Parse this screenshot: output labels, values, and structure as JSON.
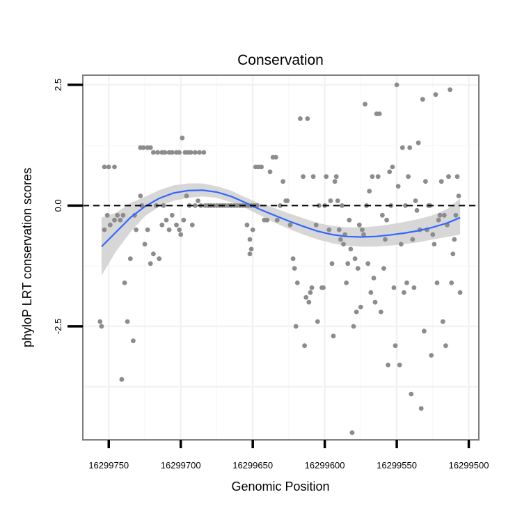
{
  "chart_data": {
    "type": "scatter",
    "title": "Conservation",
    "xlabel": "Genomic Position",
    "ylabel": "phyloP LRT conservation scores",
    "x_reversed": true,
    "xlim": [
      16299768,
      16299493
    ],
    "ylim": [
      -4.85,
      2.7
    ],
    "x_ticks": [
      {
        "value": 16299750,
        "label": "16299750"
      },
      {
        "value": 16299700,
        "label": "16299700"
      },
      {
        "value": 16299650,
        "label": "16299650"
      },
      {
        "value": 16299600,
        "label": "16299600"
      },
      {
        "value": 16299550,
        "label": "16299550"
      },
      {
        "value": 16299500,
        "label": "16299500"
      }
    ],
    "y_ticks": [
      {
        "value": 2.5,
        "label": "2.5"
      },
      {
        "value": 0.0,
        "label": "0.0"
      },
      {
        "value": -2.5,
        "label": "-2.5"
      }
    ],
    "reference_line": {
      "y": 0,
      "style": "dashed",
      "color": "#000000"
    },
    "colors": {
      "points": "#8c8c8c",
      "smooth": "#3366ff",
      "ribbon": "#d0d0d0",
      "panel_border": "#7f7f7f",
      "grid": "#f2f2f2"
    },
    "points": [
      [
        16299756,
        -2.4
      ],
      [
        16299755,
        -2.5
      ],
      [
        16299753,
        0.8
      ],
      [
        16299750,
        0.8
      ],
      [
        16299746,
        0.8
      ],
      [
        16299753,
        -0.5
      ],
      [
        16299751,
        -0.2
      ],
      [
        16299749,
        -0.4
      ],
      [
        16299746,
        -0.3
      ],
      [
        16299744,
        -0.2
      ],
      [
        16299742,
        -0.3
      ],
      [
        16299740,
        -0.2
      ],
      [
        16299741,
        -3.6
      ],
      [
        16299739,
        -1.6
      ],
      [
        16299737,
        -2.4
      ],
      [
        16299735,
        -1.1
      ],
      [
        16299733,
        -2.8
      ],
      [
        16299732,
        -0.2
      ],
      [
        16299731,
        -0.5
      ],
      [
        16299728,
        0.2
      ],
      [
        16299727,
        0.0
      ],
      [
        16299725,
        -0.8
      ],
      [
        16299723,
        -0.5
      ],
      [
        16299721,
        -1.2
      ],
      [
        16299719,
        -1.0
      ],
      [
        16299717,
        0.0
      ],
      [
        16299715,
        -1.1
      ],
      [
        16299713,
        -0.4
      ],
      [
        16299712,
        0.0
      ],
      [
        16299710,
        -0.3
      ],
      [
        16299708,
        -0.5
      ],
      [
        16299706,
        -0.2
      ],
      [
        16299703,
        -0.4
      ],
      [
        16299701,
        -0.5
      ],
      [
        16299700,
        -0.6
      ],
      [
        16299698,
        -0.3
      ],
      [
        16299696,
        0.2
      ],
      [
        16299694,
        0.0
      ],
      [
        16299692,
        -0.4
      ],
      [
        16299690,
        0.0
      ],
      [
        16299688,
        0.1
      ],
      [
        16299728,
        1.2
      ],
      [
        16299726,
        1.2
      ],
      [
        16299723,
        1.2
      ],
      [
        16299721,
        1.2
      ],
      [
        16299719,
        1.1
      ],
      [
        16299716,
        1.1
      ],
      [
        16299713,
        1.1
      ],
      [
        16299711,
        1.1
      ],
      [
        16299708,
        1.1
      ],
      [
        16299706,
        1.1
      ],
      [
        16299703,
        1.1
      ],
      [
        16299701,
        1.1
      ],
      [
        16299699,
        1.4
      ],
      [
        16299697,
        1.1
      ],
      [
        16299695,
        1.1
      ],
      [
        16299693,
        1.1
      ],
      [
        16299690,
        1.1
      ],
      [
        16299687,
        1.1
      ],
      [
        16299684,
        1.1
      ],
      [
        16299686,
        0.0
      ],
      [
        16299683,
        0.0
      ],
      [
        16299681,
        0.0
      ],
      [
        16299679,
        0.0
      ],
      [
        16299677,
        0.0
      ],
      [
        16299675,
        0.0
      ],
      [
        16299673,
        0.0
      ],
      [
        16299671,
        0.0
      ],
      [
        16299669,
        0.0
      ],
      [
        16299667,
        0.0
      ],
      [
        16299665,
        0.0
      ],
      [
        16299663,
        0.0
      ],
      [
        16299661,
        0.0
      ],
      [
        16299659,
        0.0
      ],
      [
        16299657,
        0.0
      ],
      [
        16299655,
        0.0
      ],
      [
        16299653,
        0.0
      ],
      [
        16299651,
        0.0
      ],
      [
        16299649,
        0.0
      ],
      [
        16299647,
        0.0
      ],
      [
        16299654,
        -0.4
      ],
      [
        16299652,
        -0.7
      ],
      [
        16299651,
        -0.9
      ],
      [
        16299652,
        -1.0
      ],
      [
        16299650,
        -0.5
      ],
      [
        16299648,
        0.8
      ],
      [
        16299646,
        0.8
      ],
      [
        16299644,
        0.8
      ],
      [
        16299642,
        -0.3
      ],
      [
        16299640,
        -0.3
      ],
      [
        16299638,
        0.7
      ],
      [
        16299636,
        1.0
      ],
      [
        16299634,
        1.0
      ],
      [
        16299633,
        -0.3
      ],
      [
        16299631,
        0.0
      ],
      [
        16299629,
        0.5
      ],
      [
        16299627,
        0.1
      ],
      [
        16299626,
        0.1
      ],
      [
        16299624,
        -0.4
      ],
      [
        16299622,
        -1.1
      ],
      [
        16299621,
        -1.3
      ],
      [
        16299620,
        -2.5
      ],
      [
        16299619,
        -1.6
      ],
      [
        16299617,
        1.8
      ],
      [
        16299615,
        0.6
      ],
      [
        16299614,
        -2.9
      ],
      [
        16299613,
        -1.9
      ],
      [
        16299612,
        1.8
      ],
      [
        16299611,
        -2.0
      ],
      [
        16299610,
        -1.8
      ],
      [
        16299609,
        -1.7
      ],
      [
        16299608,
        0.6
      ],
      [
        16299606,
        -0.4
      ],
      [
        16299605,
        -2.4
      ],
      [
        16299604,
        0.0
      ],
      [
        16299602,
        -1.7
      ],
      [
        16299601,
        -1.7
      ],
      [
        16299600,
        0.0
      ],
      [
        16299599,
        0.6
      ],
      [
        16299597,
        -0.5
      ],
      [
        16299596,
        0.1
      ],
      [
        16299595,
        -1.2
      ],
      [
        16299594,
        -2.7
      ],
      [
        16299593,
        0.5
      ],
      [
        16299592,
        0.6
      ],
      [
        16299591,
        0.1
      ],
      [
        16299590,
        -0.5
      ],
      [
        16299589,
        -0.7
      ],
      [
        16299588,
        0.0
      ],
      [
        16299587,
        -0.8
      ],
      [
        16299586,
        -0.6
      ],
      [
        16299585,
        -1.6
      ],
      [
        16299584,
        -1.2
      ],
      [
        16299583,
        -0.3
      ],
      [
        16299582,
        -0.9
      ],
      [
        16299581,
        -4.7
      ],
      [
        16299580,
        -2.5
      ],
      [
        16299579,
        -1.1
      ],
      [
        16299578,
        -2.2
      ],
      [
        16299577,
        -1.3
      ],
      [
        16299576,
        -0.4
      ],
      [
        16299575,
        -2.1
      ],
      [
        16299574,
        -0.5
      ],
      [
        16299573,
        -0.6
      ],
      [
        16299572,
        2.1
      ],
      [
        16299571,
        0.0
      ],
      [
        16299570,
        -1.2
      ],
      [
        16299569,
        0.3
      ],
      [
        16299568,
        -1.8
      ],
      [
        16299567,
        0.6
      ],
      [
        16299566,
        -1.5
      ],
      [
        16299565,
        -2.0
      ],
      [
        16299564,
        1.9
      ],
      [
        16299563,
        0.6
      ],
      [
        16299562,
        1.9
      ],
      [
        16299561,
        -2.2
      ],
      [
        16299560,
        -0.2
      ],
      [
        16299559,
        -1.3
      ],
      [
        16299558,
        -0.7
      ],
      [
        16299557,
        -0.3
      ],
      [
        16299556,
        -3.3
      ],
      [
        16299555,
        0.7
      ],
      [
        16299554,
        0.0
      ],
      [
        16299553,
        0.8
      ],
      [
        16299552,
        -1.7
      ],
      [
        16299551,
        -2.9
      ],
      [
        16299550,
        2.5
      ],
      [
        16299549,
        0.4
      ],
      [
        16299548,
        -3.3
      ],
      [
        16299547,
        -0.8
      ],
      [
        16299546,
        1.2
      ],
      [
        16299545,
        -1.8
      ],
      [
        16299544,
        0.0
      ],
      [
        16299543,
        -1.6
      ],
      [
        16299542,
        0.6
      ],
      [
        16299541,
        1.2
      ],
      [
        16299540,
        -3.9
      ],
      [
        16299539,
        -0.7
      ],
      [
        16299538,
        -1.7
      ],
      [
        16299537,
        0.1
      ],
      [
        16299536,
        -0.1
      ],
      [
        16299535,
        1.3
      ],
      [
        16299534,
        -0.5
      ],
      [
        16299533,
        -4.2
      ],
      [
        16299532,
        2.2
      ],
      [
        16299531,
        -2.6
      ],
      [
        16299530,
        0.5
      ],
      [
        16299529,
        -0.5
      ],
      [
        16299528,
        0.0
      ],
      [
        16299527,
        0.0
      ],
      [
        16299526,
        -3.1
      ],
      [
        16299525,
        -0.6
      ],
      [
        16299524,
        -0.8
      ],
      [
        16299523,
        2.3
      ],
      [
        16299522,
        -1.6
      ],
      [
        16299521,
        -0.3
      ],
      [
        16299520,
        -0.2
      ],
      [
        16299519,
        0.5
      ],
      [
        16299518,
        -2.4
      ],
      [
        16299517,
        -0.2
      ],
      [
        16299516,
        -2.9
      ],
      [
        16299515,
        -0.4
      ],
      [
        16299514,
        0.6
      ],
      [
        16299513,
        2.4
      ],
      [
        16299512,
        -1.6
      ],
      [
        16299511,
        -1.0
      ],
      [
        16299510,
        -0.7
      ],
      [
        16299509,
        -0.2
      ],
      [
        16299508,
        0.6
      ],
      [
        16299507,
        0.2
      ],
      [
        16299506,
        -1.8
      ]
    ],
    "smooth": {
      "x": [
        16299755,
        16299745,
        16299735,
        16299725,
        16299715,
        16299705,
        16299695,
        16299685,
        16299675,
        16299665,
        16299655,
        16299645,
        16299635,
        16299625,
        16299615,
        16299605,
        16299595,
        16299585,
        16299575,
        16299565,
        16299555,
        16299545,
        16299535,
        16299525,
        16299515,
        16299506
      ],
      "y": [
        -0.85,
        -0.55,
        -0.25,
        -0.02,
        0.15,
        0.26,
        0.31,
        0.32,
        0.28,
        0.19,
        0.06,
        -0.08,
        -0.2,
        -0.32,
        -0.43,
        -0.53,
        -0.6,
        -0.64,
        -0.65,
        -0.64,
        -0.61,
        -0.57,
        -0.52,
        -0.45,
        -0.36,
        -0.25
      ],
      "lower": [
        -1.45,
        -0.95,
        -0.55,
        -0.22,
        -0.02,
        0.1,
        0.16,
        0.19,
        0.16,
        0.07,
        -0.05,
        -0.2,
        -0.35,
        -0.48,
        -0.6,
        -0.7,
        -0.78,
        -0.83,
        -0.85,
        -0.85,
        -0.83,
        -0.8,
        -0.76,
        -0.7,
        -0.65,
        -0.6
      ],
      "upper": [
        -0.25,
        -0.15,
        0.05,
        0.18,
        0.32,
        0.42,
        0.46,
        0.46,
        0.4,
        0.31,
        0.17,
        0.04,
        -0.05,
        -0.16,
        -0.26,
        -0.36,
        -0.42,
        -0.45,
        -0.45,
        -0.43,
        -0.39,
        -0.34,
        -0.28,
        -0.2,
        -0.07,
        0.15
      ]
    }
  }
}
